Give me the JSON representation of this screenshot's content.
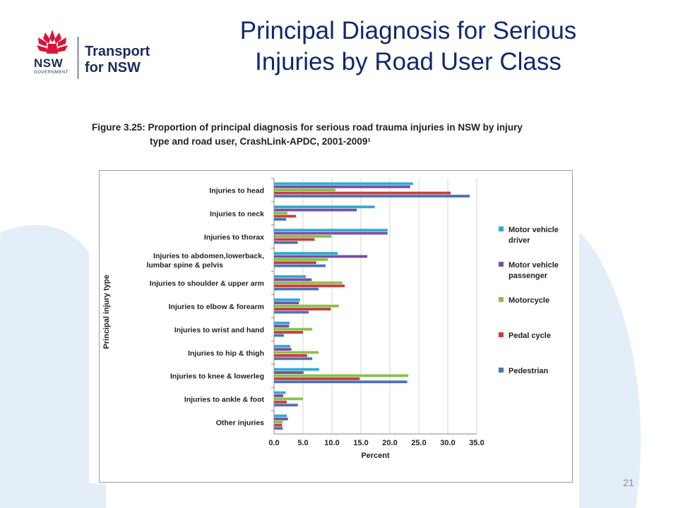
{
  "slide": {
    "title_line1": "Principal Diagnosis for Serious",
    "title_line2": "Injuries by Road User Class",
    "page_number": "21"
  },
  "logo": {
    "nsw": "NSW",
    "government": "GOVERNMENT",
    "line1": "Transport",
    "line2": "for NSW"
  },
  "figure": {
    "caption_line1": "Figure 3.25: Proportion of principal diagnosis for serious road trauma injuries in NSW by injury",
    "caption_line2": "type and road user, CrashLink-APDC, 2001-2009¹"
  },
  "colors": {
    "accent_title": "#102a6b",
    "bg_shape": "#e4eef8"
  },
  "chart_data": {
    "type": "bar",
    "orientation": "horizontal",
    "xlabel": "Percent",
    "ylabel": "Principal injury type",
    "xlim": [
      0,
      35
    ],
    "xticks": [
      "0.0",
      "5.0",
      "10.0",
      "15.0",
      "20.0",
      "25.0",
      "30.0",
      "35.0"
    ],
    "legend_position": "right",
    "categories": [
      "Injuries to head",
      "Injuries to neck",
      "Injuries to thorax",
      "Injuries to abdomen,lowerback, lumbar spine & pelvis",
      "Injuries to shoulder & upper arm",
      "Injuries to elbow & forearm",
      "Injuries to wrist and hand",
      "Injuries to hip & thigh",
      "Injuries to knee & lowerleg",
      "Injuries to ankle & foot",
      "Other injuries"
    ],
    "series": [
      {
        "name": "Motor vehicle driver",
        "color": "#34a9cf",
        "values": [
          24.0,
          17.4,
          19.6,
          11.0,
          5.5,
          4.5,
          2.7,
          2.8,
          7.8,
          2.0,
          2.2
        ]
      },
      {
        "name": "Motor vehicle passenger",
        "color": "#7b4ea1",
        "values": [
          23.5,
          14.3,
          19.6,
          16.1,
          6.5,
          4.3,
          2.6,
          3.0,
          5.1,
          1.6,
          2.4
        ]
      },
      {
        "name": "Motorcycle",
        "color": "#8cbf4a",
        "values": [
          10.6,
          2.3,
          9.9,
          9.3,
          11.8,
          11.2,
          6.6,
          7.7,
          23.2,
          5.0,
          1.5
        ]
      },
      {
        "name": "Pedal cycle",
        "color": "#c63e3f",
        "values": [
          30.5,
          3.8,
          7.0,
          7.3,
          12.2,
          9.8,
          5.0,
          5.7,
          14.8,
          2.2,
          1.4
        ]
      },
      {
        "name": "Pedestrian",
        "color": "#4a73b8",
        "values": [
          33.8,
          2.1,
          4.1,
          8.9,
          7.7,
          6.0,
          1.7,
          6.6,
          23.0,
          4.1,
          1.5
        ]
      }
    ]
  }
}
